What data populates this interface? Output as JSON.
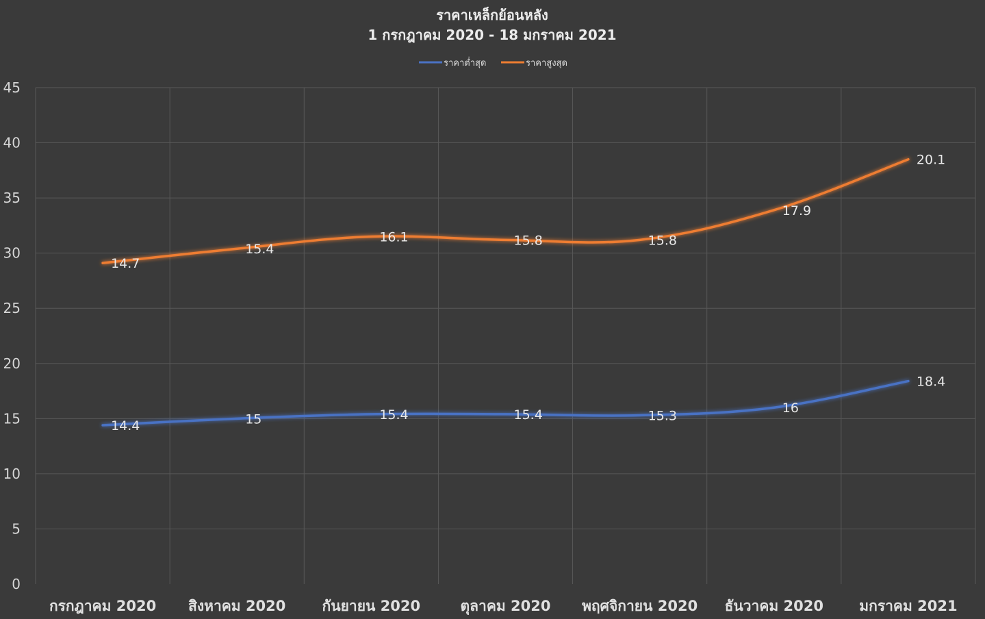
{
  "chart_data": {
    "type": "line",
    "title": "ราคาเหล็กย้อนหลัง",
    "subtitle": "1 กรกฎาคม 2020 - 18 มกราคม 2021",
    "categories": [
      "กรกฎาคม 2020",
      "สิงหาคม 2020",
      "กันยายน 2020",
      "ตุลาคม 2020",
      "พฤศจิกายน 2020",
      "ธันวาคม 2020",
      "มกราคม 2021"
    ],
    "series": [
      {
        "name": "ราคาต่ำสุด",
        "color": "#4a72c4",
        "values": [
          14.4,
          15,
          15.4,
          15.4,
          15.3,
          16,
          18.4
        ],
        "labels": [
          "14.4",
          "15",
          "15.4",
          "15.4",
          "15.3",
          "16",
          "18.4"
        ]
      },
      {
        "name": "ราคาสูงสุด",
        "color": "#ee7d31",
        "values": [
          29.1,
          30.4,
          31.5,
          31.2,
          31.2,
          33.9,
          38.5
        ],
        "labels": [
          "14.7",
          "15.4",
          "16.1",
          "15.8",
          "15.8",
          "17.9",
          "20.1"
        ]
      }
    ],
    "yticks": [
      "0",
      "5",
      "10",
      "15",
      "20",
      "25",
      "30",
      "35",
      "40",
      "45"
    ],
    "ylim": [
      0,
      45
    ],
    "grid": true,
    "legend_position": "top"
  }
}
